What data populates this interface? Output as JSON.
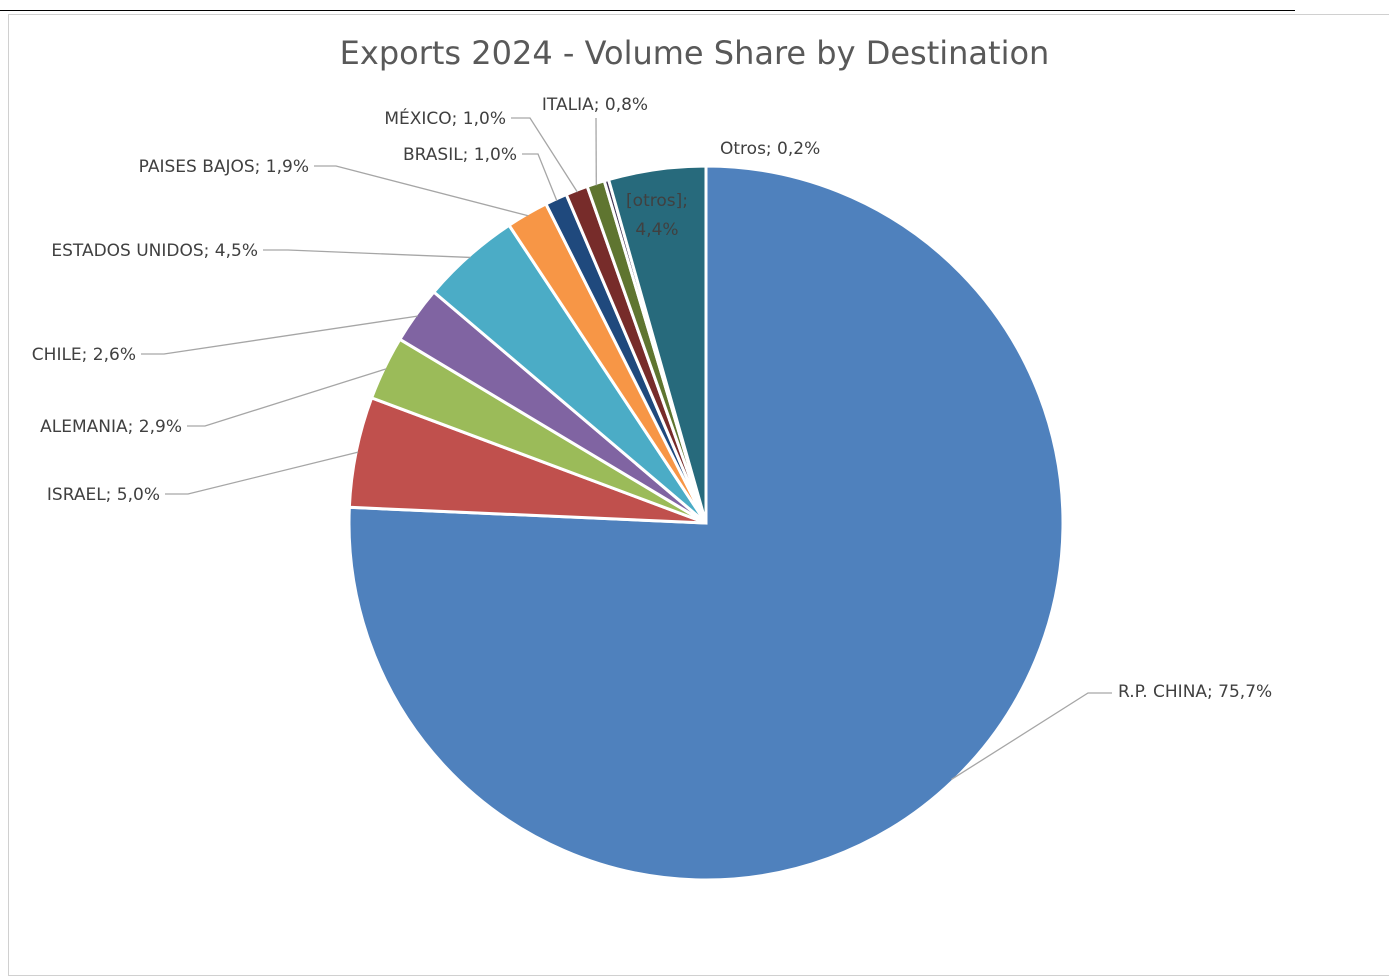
{
  "chart_data": {
    "type": "pie",
    "title": "Exports 2024 - Volume Share by Destination",
    "slices": [
      {
        "label": "R.P. CHINA; 75,7%",
        "value": 75.7,
        "color": "#4f81bd"
      },
      {
        "label": "ISRAEL; 5,0%",
        "value": 5.0,
        "color": "#c0504d"
      },
      {
        "label": "ALEMANIA; 2,9%",
        "value": 2.9,
        "color": "#9bbb59"
      },
      {
        "label": "CHILE; 2,6%",
        "value": 2.6,
        "color": "#8064a2"
      },
      {
        "label": "ESTADOS UNIDOS; 4,5%",
        "value": 4.5,
        "color": "#4bacc6"
      },
      {
        "label": "PAISES BAJOS; 1,9%",
        "value": 1.9,
        "color": "#f79646"
      },
      {
        "label": "BRASIL; 1,0%",
        "value": 1.0,
        "color": "#1f497d"
      },
      {
        "label": "MÉXICO; 1,0%",
        "value": 1.0,
        "color": "#772c2a"
      },
      {
        "label": "ITALIA; 0,8%",
        "value": 0.8,
        "color": "#5f7530"
      },
      {
        "label": "Otros; 0,2%",
        "value": 0.2,
        "color": "#3f3151"
      },
      {
        "label": "[otros]; 4,4%",
        "value": 4.4,
        "color": "#276a7c"
      }
    ]
  }
}
